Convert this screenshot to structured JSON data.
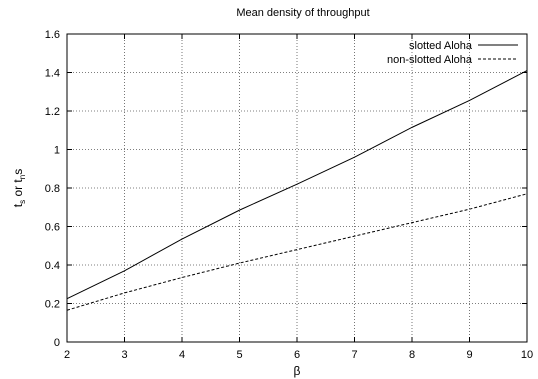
{
  "chart_data": {
    "type": "line",
    "title": "Mean density of throughput",
    "xlabel": "β",
    "ylabel_parts": {
      "t1": "t",
      "s1": "s",
      "or": " or ",
      "t2": "t",
      "s2": "n",
      "s3": "s"
    },
    "xlim": [
      2,
      10
    ],
    "ylim": [
      0,
      1.6
    ],
    "xticks": [
      "2",
      "3",
      "4",
      "5",
      "6",
      "7",
      "8",
      "9",
      "10"
    ],
    "yticks": [
      "0",
      "0.2",
      "0.4",
      "0.6",
      "0.8",
      "1",
      "1.2",
      "1.4",
      "1.6"
    ],
    "grid": true,
    "legend_position": "top-right",
    "x": [
      2,
      3,
      4,
      5,
      6,
      7,
      8,
      9,
      10
    ],
    "series": [
      {
        "name": "slotted Aloha",
        "style": "solid",
        "values": [
          0.225,
          0.37,
          0.535,
          0.685,
          0.82,
          0.96,
          1.115,
          1.255,
          1.41
        ]
      },
      {
        "name": "non-slotted Aloha",
        "style": "dashed",
        "values": [
          0.165,
          0.255,
          0.335,
          0.41,
          0.48,
          0.55,
          0.62,
          0.69,
          0.77
        ]
      }
    ]
  }
}
